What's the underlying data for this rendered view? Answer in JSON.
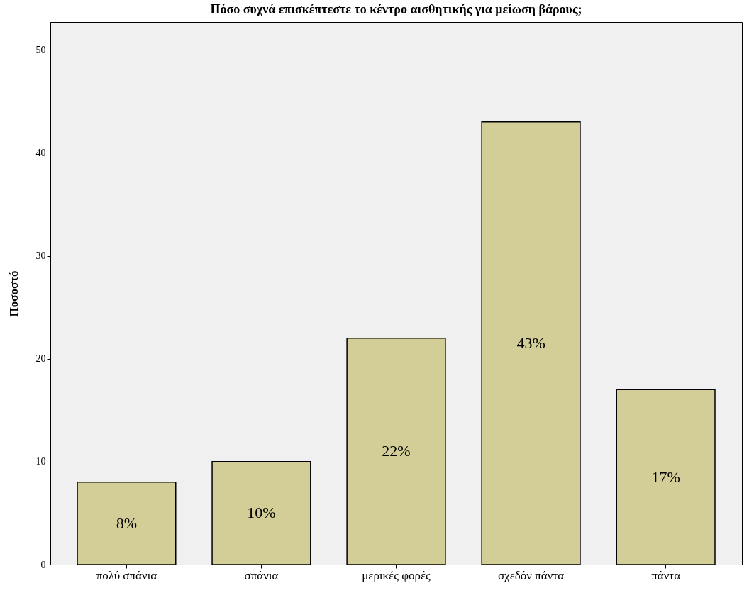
{
  "chart_data": {
    "type": "bar",
    "title": "Πόσο συχνά επισκέπτεστε το κέντρο αισθητικής για μείωση βάρους;",
    "ylabel": "Ποσοστό",
    "categories": [
      "πολύ σπάνια",
      "σπάνια",
      "μερικές φορές",
      "σχεδόν πάντα",
      "πάντα"
    ],
    "values": [
      8,
      10,
      22,
      43,
      17
    ],
    "value_labels": [
      "8%",
      "10%",
      "22%",
      "43%",
      "17%"
    ],
    "color": "#d3ce97",
    "ylim": [
      0,
      52.7
    ],
    "yticks": [
      0,
      10,
      20,
      30,
      40,
      50
    ],
    "grid": false
  }
}
